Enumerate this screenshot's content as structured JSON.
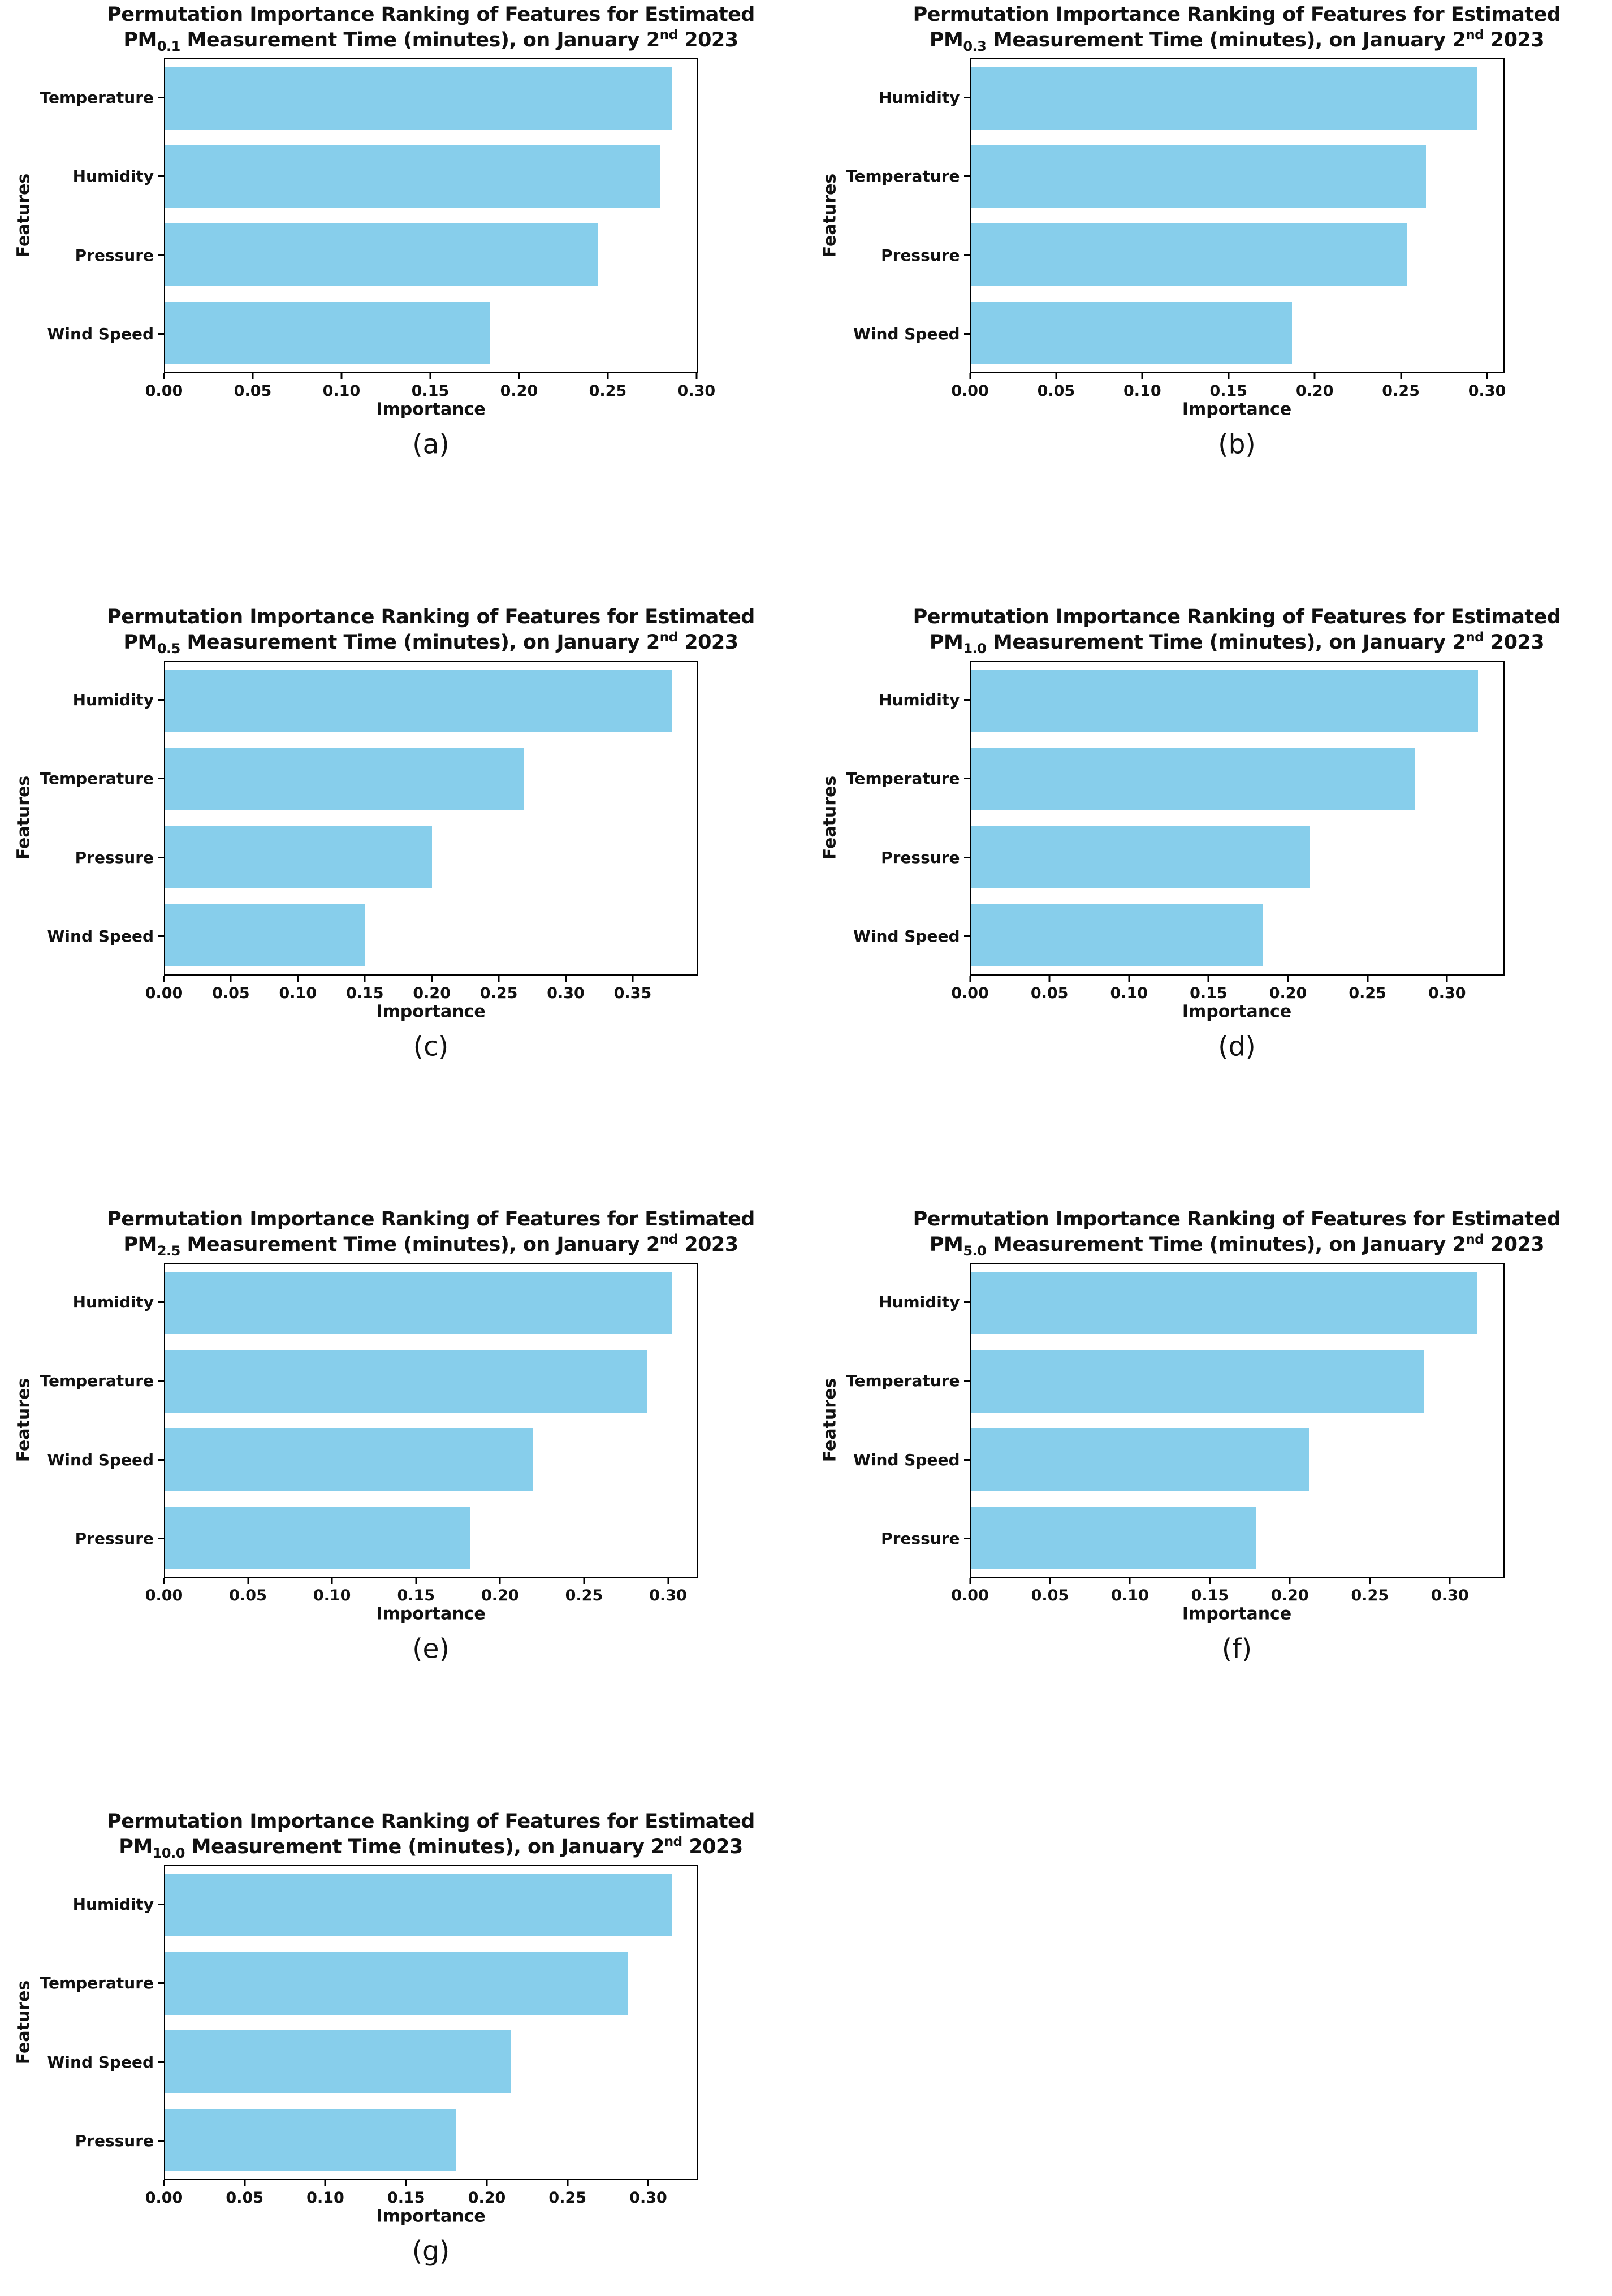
{
  "figure": {
    "title_line1": "Permutation Importance Ranking of Features for Estimated",
    "pm_prefix": "PM",
    "title_mid": " Measurement Time (minutes), on January 2",
    "title_ordinal": "nd",
    "title_year": " 2023",
    "ylabel": "Features",
    "xlabel": "Importance",
    "bar_color": "#87CEEB",
    "axis_color": "#000000"
  },
  "chart_data": [
    {
      "type": "bar",
      "orientation": "horizontal",
      "caption": "(a)",
      "pm_sub": "0.1",
      "categories": [
        "Temperature",
        "Humidity",
        "Pressure",
        "Wind Speed"
      ],
      "values": [
        0.287,
        0.28,
        0.245,
        0.184
      ],
      "xticks": [
        "0.00",
        "0.05",
        "0.10",
        "0.15",
        "0.20",
        "0.25",
        "0.30"
      ],
      "xlim": [
        0,
        0.301
      ],
      "grid": false,
      "legend": false
    },
    {
      "type": "bar",
      "orientation": "horizontal",
      "caption": "(b)",
      "pm_sub": "0.3",
      "categories": [
        "Humidity",
        "Temperature",
        "Pressure",
        "Wind Speed"
      ],
      "values": [
        0.295,
        0.265,
        0.254,
        0.187
      ],
      "xticks": [
        "0.00",
        "0.05",
        "0.10",
        "0.15",
        "0.20",
        "0.25",
        "0.30"
      ],
      "xlim": [
        0,
        0.31
      ],
      "grid": false,
      "legend": false
    },
    {
      "type": "bar",
      "orientation": "horizontal",
      "caption": "(c)",
      "pm_sub": "0.5",
      "categories": [
        "Humidity",
        "Temperature",
        "Pressure",
        "Wind Speed"
      ],
      "values": [
        0.38,
        0.269,
        0.2,
        0.15
      ],
      "xticks": [
        "0.00",
        "0.05",
        "0.10",
        "0.15",
        "0.20",
        "0.25",
        "0.30",
        "0.35"
      ],
      "xlim": [
        0,
        0.399
      ],
      "grid": false,
      "legend": false
    },
    {
      "type": "bar",
      "orientation": "horizontal",
      "caption": "(d)",
      "pm_sub": "1.0",
      "categories": [
        "Humidity",
        "Temperature",
        "Pressure",
        "Wind Speed"
      ],
      "values": [
        0.32,
        0.28,
        0.214,
        0.184
      ],
      "xticks": [
        "0.00",
        "0.05",
        "0.10",
        "0.15",
        "0.20",
        "0.25",
        "0.30"
      ],
      "xlim": [
        0,
        0.336
      ],
      "grid": false,
      "legend": false
    },
    {
      "type": "bar",
      "orientation": "horizontal",
      "caption": "(e)",
      "pm_sub": "2.5",
      "categories": [
        "Humidity",
        "Temperature",
        "Wind Speed",
        "Pressure"
      ],
      "values": [
        0.303,
        0.288,
        0.22,
        0.182
      ],
      "xticks": [
        "0.00",
        "0.05",
        "0.10",
        "0.15",
        "0.20",
        "0.25",
        "0.30"
      ],
      "xlim": [
        0,
        0.318
      ],
      "grid": false,
      "legend": false
    },
    {
      "type": "bar",
      "orientation": "horizontal",
      "caption": "(f)",
      "pm_sub": "5.0",
      "categories": [
        "Humidity",
        "Temperature",
        "Wind Speed",
        "Pressure"
      ],
      "values": [
        0.318,
        0.284,
        0.212,
        0.179
      ],
      "xticks": [
        "0.00",
        "0.05",
        "0.10",
        "0.15",
        "0.20",
        "0.25",
        "0.30"
      ],
      "xlim": [
        0,
        0.334
      ],
      "grid": false,
      "legend": false
    },
    {
      "type": "bar",
      "orientation": "horizontal",
      "caption": "(g)",
      "pm_sub": "10.0",
      "categories": [
        "Humidity",
        "Temperature",
        "Wind Speed",
        "Pressure"
      ],
      "values": [
        0.315,
        0.288,
        0.215,
        0.181
      ],
      "xticks": [
        "0.00",
        "0.05",
        "0.10",
        "0.15",
        "0.20",
        "0.25",
        "0.30"
      ],
      "xlim": [
        0,
        0.331
      ],
      "grid": false,
      "legend": false
    }
  ]
}
